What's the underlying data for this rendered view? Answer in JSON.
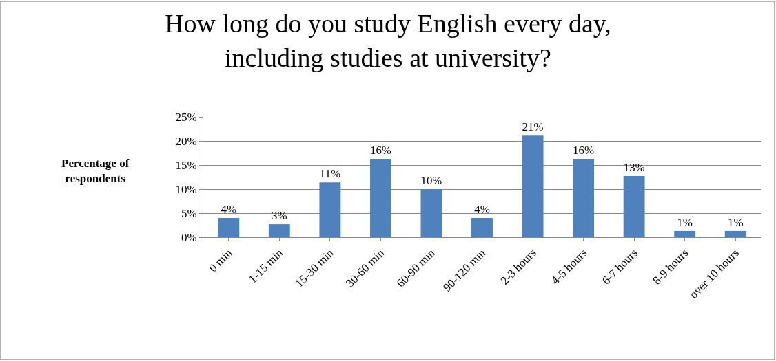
{
  "chart_data": {
    "type": "bar",
    "title": "How long do you study English every day,\nincluding studies at university?",
    "ylabel": "Percentage of\nrespondents",
    "categories": [
      "0 min",
      "1-15 min",
      "15-30 min",
      "30-60 min",
      "60-90 min",
      "90-120 min",
      "2-3 hours",
      "4-5 hours",
      "6-7 hours",
      "8-9 hours",
      "over 10 hours"
    ],
    "values": [
      4,
      2.7,
      11.4,
      16.3,
      10,
      4,
      21.1,
      16.3,
      12.7,
      1.3,
      1.3
    ],
    "value_labels": [
      "4%",
      "3%",
      "11%",
      "16%",
      "10%",
      "4%",
      "21%",
      "16%",
      "13%",
      "1%",
      "1%"
    ],
    "color": "#4f81bd",
    "ylim": [
      0,
      25
    ],
    "yticks": [
      {
        "value": 0,
        "label": "0%"
      },
      {
        "value": 5,
        "label": "5%"
      },
      {
        "value": 10,
        "label": "10%"
      },
      {
        "value": 15,
        "label": "15%"
      },
      {
        "value": 20,
        "label": "20%"
      },
      {
        "value": 25,
        "label": "25%"
      }
    ],
    "grid": "y",
    "legend": false
  }
}
